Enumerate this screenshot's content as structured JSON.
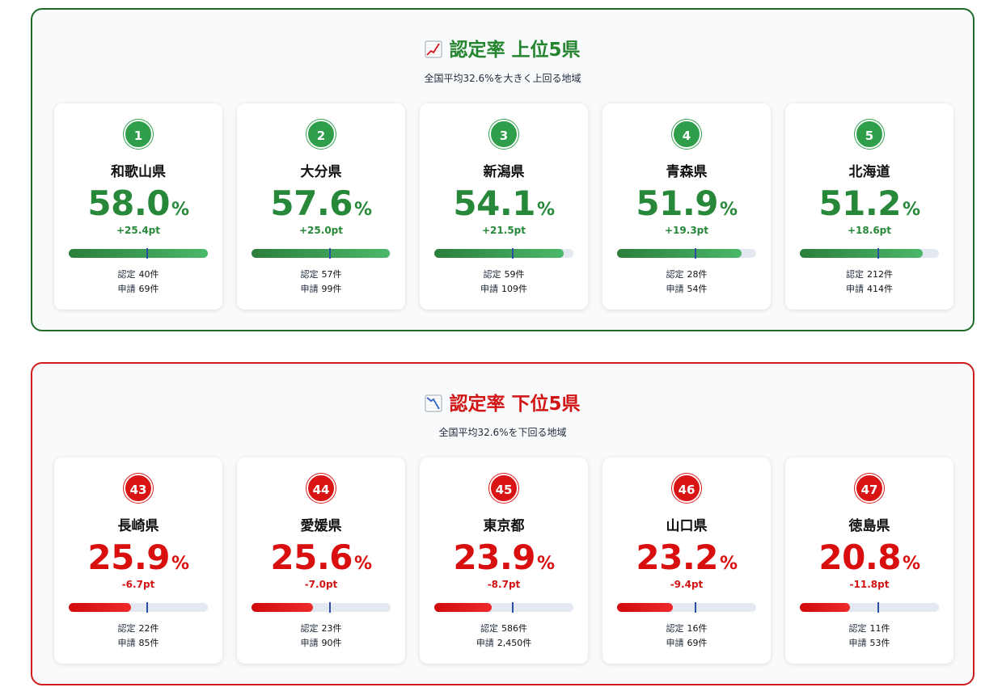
{
  "national_average": 32.6,
  "sections": [
    {
      "id": "top",
      "icon": "chart-increasing-icon",
      "title": "認定率 上位5県",
      "subtitle": "全国平均32.6%を大きく上回る地域",
      "accent": "#27883a",
      "cards": [
        {
          "rank": "1",
          "pref": "和歌山県",
          "rate": "58.0",
          "rate_value": 58.0,
          "diff": "+25.4pt",
          "certified": "40件",
          "applied": "69件"
        },
        {
          "rank": "2",
          "pref": "大分県",
          "rate": "57.6",
          "rate_value": 57.6,
          "diff": "+25.0pt",
          "certified": "57件",
          "applied": "99件"
        },
        {
          "rank": "3",
          "pref": "新潟県",
          "rate": "54.1",
          "rate_value": 54.1,
          "diff": "+21.5pt",
          "certified": "59件",
          "applied": "109件"
        },
        {
          "rank": "4",
          "pref": "青森県",
          "rate": "51.9",
          "rate_value": 51.9,
          "diff": "+19.3pt",
          "certified": "28件",
          "applied": "54件"
        },
        {
          "rank": "5",
          "pref": "北海道",
          "rate": "51.2",
          "rate_value": 51.2,
          "diff": "+18.6pt",
          "certified": "212件",
          "applied": "414件"
        }
      ]
    },
    {
      "id": "bottom",
      "icon": "chart-decreasing-icon",
      "title": "認定率 下位5県",
      "subtitle": "全国平均32.6%を下回る地域",
      "accent": "#d90e0e",
      "cards": [
        {
          "rank": "43",
          "pref": "長崎県",
          "rate": "25.9",
          "rate_value": 25.9,
          "diff": "-6.7pt",
          "certified": "22件",
          "applied": "85件"
        },
        {
          "rank": "44",
          "pref": "愛媛県",
          "rate": "25.6",
          "rate_value": 25.6,
          "diff": "-7.0pt",
          "certified": "23件",
          "applied": "90件"
        },
        {
          "rank": "45",
          "pref": "東京都",
          "rate": "23.9",
          "rate_value": 23.9,
          "diff": "-8.7pt",
          "certified": "586件",
          "applied": "2,450件"
        },
        {
          "rank": "46",
          "pref": "山口県",
          "rate": "23.2",
          "rate_value": 23.2,
          "diff": "-9.4pt",
          "certified": "16件",
          "applied": "69件"
        },
        {
          "rank": "47",
          "pref": "徳島県",
          "rate": "20.8",
          "rate_value": 20.8,
          "diff": "-11.8pt",
          "certified": "11件",
          "applied": "53件"
        }
      ]
    }
  ],
  "labels": {
    "certified": "認定",
    "applied": "申請",
    "percent": "%"
  },
  "chart_data": {
    "type": "bar",
    "title": "",
    "xlabel": "",
    "ylabel": "",
    "ylim": [
      0,
      60
    ],
    "categories": [
      "和歌山県",
      "大分県",
      "新潟県",
      "青森県",
      "北海道",
      "長崎県",
      "愛媛県",
      "東京都",
      "山口県",
      "徳島県"
    ],
    "values": [
      58.0,
      57.6,
      54.1,
      51.9,
      51.2,
      25.9,
      25.6,
      23.9,
      23.2,
      20.8
    ]
  }
}
